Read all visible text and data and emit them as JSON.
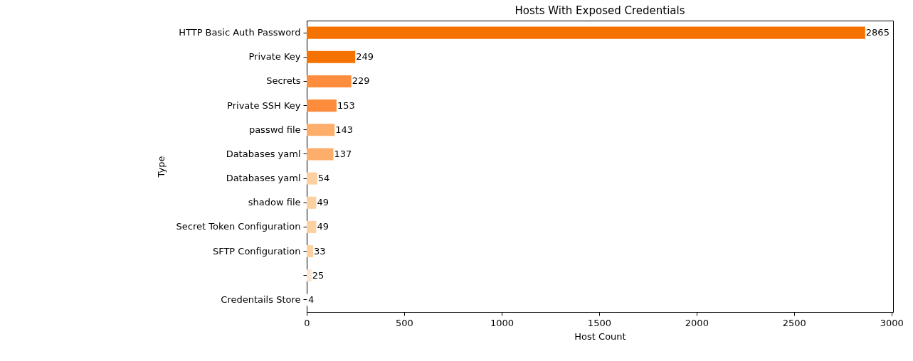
{
  "chart_data": {
    "type": "bar",
    "orientation": "horizontal",
    "title": "Hosts With Exposed Credentials",
    "xlabel": "Host Count",
    "ylabel": "Type",
    "categories": [
      "HTTP Basic Auth Password",
      "Private Key",
      "Secrets",
      "Private SSH Key",
      "passwd file",
      "Databases yaml",
      "Databases yaml",
      "shadow file",
      "Secret Token Configuration",
      "SFTP Configuration",
      null,
      "Credentails Store"
    ],
    "values": [
      2865,
      249,
      229,
      153,
      143,
      137,
      54,
      49,
      49,
      33,
      25,
      4
    ],
    "colors": [
      "#f57100",
      "#f57100",
      "#fd8d3c",
      "#fd8d3c",
      "#fdae6b",
      "#fdae6b",
      "#fdd0a2",
      "#fdd0a2",
      "#fdd0a2",
      "#fdd0a2",
      "#fee6ce",
      "#fff5eb"
    ],
    "xlim": [
      0,
      3008
    ],
    "xticks": [
      0,
      500,
      1000,
      1500,
      2000,
      2500,
      3000
    ],
    "data_labels": true,
    "grid": false
  }
}
